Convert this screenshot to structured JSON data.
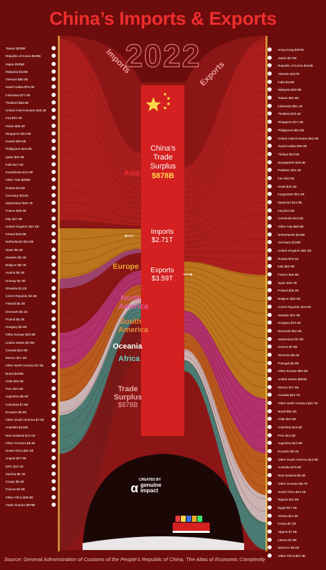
{
  "header": {
    "title": "China’s Imports & Exports",
    "year": "2022"
  },
  "side_labels": {
    "imports": "Imports",
    "exports": "Exports"
  },
  "center": {
    "surplus_title": "China’s Trade Surplus",
    "surplus_value": "$878B",
    "imports_label": "Imports",
    "imports_value": "$2.71T",
    "exports_label": "Exports",
    "exports_value": "$3.59T",
    "trade_surplus_label": "Trade Surplus",
    "trade_surplus_value": "$878B"
  },
  "regions": {
    "asia": "Asia",
    "europe": "Europe",
    "north_america": "North America",
    "south_america": "South America",
    "oceania": "Oceania",
    "africa": "Africa"
  },
  "colors": {
    "background": "#6d0c0c",
    "asia": "#b01e1e",
    "europe": "#c4861d",
    "north_america": "#b8367a",
    "south_america": "#c2671f",
    "oceania": "#d6cfcf",
    "africa": "#3f8c82",
    "title": "#ee2e2e"
  },
  "imports": [
    {
      "label": "Taiwan $238B"
    },
    {
      "label": "Republic of Korea $199B"
    },
    {
      "label": "Japan $185B"
    },
    {
      "label": "Malaysia $110B"
    },
    {
      "label": "Vietnam $88.0B"
    },
    {
      "label": "Saudi Arabia $78.0B"
    },
    {
      "label": "Indonesia $77.6B"
    },
    {
      "label": "Thailand $58.5B"
    },
    {
      "label": "United Arab Emirates $45.4B"
    },
    {
      "label": "Iraq $41.4B"
    },
    {
      "label": "Oman $36.2B"
    },
    {
      "label": "Singapore $34.0B"
    },
    {
      "label": "Kuwait $28.5B"
    },
    {
      "label": "Philippines $23.0B"
    },
    {
      "label": "Qatar $22.6B"
    },
    {
      "label": "India $17.5B"
    },
    {
      "label": "Kazakhstan $14.8B"
    },
    {
      "label": "Other Asia $285B"
    },
    {
      "label": "Russia $114B"
    },
    {
      "label": "Germany $111B"
    },
    {
      "label": "Switzerland $49.7B"
    },
    {
      "label": "France $29.4B"
    },
    {
      "label": "Italy $27.0B"
    },
    {
      "label": "United Kingdom $21.6B"
    },
    {
      "label": "Ireland $18.9B"
    },
    {
      "label": "Netherlands $12.5B"
    },
    {
      "label": "Spain $9.3B"
    },
    {
      "label": "Sweden $9.2B"
    },
    {
      "label": "Belgium $8.7B"
    },
    {
      "label": "Austria $6.3B"
    },
    {
      "label": "Norway $4.3B"
    },
    {
      "label": "Slovakia $4.2B"
    },
    {
      "label": "Czech Republic $3.4B"
    },
    {
      "label": "Finland $5.2B"
    },
    {
      "label": "Denmark $5.1B"
    },
    {
      "label": "Poland $5.1B"
    },
    {
      "label": "Hungary $5.0B"
    },
    {
      "label": "Other Europe $20.6B"
    },
    {
      "label": "United States $178B"
    },
    {
      "label": "Canada $42.9B"
    },
    {
      "label": "Mexico $17.4B"
    },
    {
      "label": "Other North America $7.6B"
    },
    {
      "label": "Brazil $109B"
    },
    {
      "label": "Chile $44.3B"
    },
    {
      "label": "Peru $24.0B"
    },
    {
      "label": "Argentina $8.0B"
    },
    {
      "label": "Colombia $7.8B"
    },
    {
      "label": "Ecuador $6.9B"
    },
    {
      "label": "Other South America $7.6B"
    },
    {
      "label": "Australia $142B"
    },
    {
      "label": "New Zealand $13.1B"
    },
    {
      "label": "Other Oceania $6.3B"
    },
    {
      "label": "South Africa $32.4B"
    },
    {
      "label": "Angola $27.0B"
    },
    {
      "label": "DRC $15.1B"
    },
    {
      "label": "Zambia $5.7B"
    },
    {
      "label": "Congo $5.6B"
    },
    {
      "label": "Guinea $4.5B"
    },
    {
      "label": "Other Africa $29.6B"
    },
    {
      "label": "Trade Surplus $878B"
    }
  ],
  "exports": [
    {
      "label": "Hong Kong $297B"
    },
    {
      "label": "Japan $173B"
    },
    {
      "label": "Republic of Korea $163B"
    },
    {
      "label": "Vietnam $147B"
    },
    {
      "label": "India $118B"
    },
    {
      "label": "Malaysia $93.5B"
    },
    {
      "label": "Taiwan $81.6B"
    },
    {
      "label": "Indonesia $81.1B"
    },
    {
      "label": "Thailand $78.4B"
    },
    {
      "label": "Singapore $71.5B"
    },
    {
      "label": "Philippines $64.6B"
    },
    {
      "label": "United Arab Emirates $53.9B"
    },
    {
      "label": "Saudi Arabia $38.0B"
    },
    {
      "label": "Türkiye $34.0B"
    },
    {
      "label": "Bangladesh $26.0B"
    },
    {
      "label": "Pakistan $23.1B"
    },
    {
      "label": "Iran $16.5B"
    },
    {
      "label": "Israel $16.2B"
    },
    {
      "label": "Kyrgyzstan $15.4B"
    },
    {
      "label": "Myanmar $14.9B"
    },
    {
      "label": "Iraq $14.0B"
    },
    {
      "label": "Cambodia $13.6B"
    },
    {
      "label": "Other Asia $65.8B"
    },
    {
      "label": "Netherlands $118B"
    },
    {
      "label": "Germany $116B"
    },
    {
      "label": "United Kingdom $81.5B"
    },
    {
      "label": "Russia $76.1B"
    },
    {
      "label": "Italy $50.9B"
    },
    {
      "label": "France $45.9B"
    },
    {
      "label": "Spain $43.7B"
    },
    {
      "label": "Poland $38.2B"
    },
    {
      "label": "Belgium $26.4B"
    },
    {
      "label": "Czech Republic $16.5B"
    },
    {
      "label": "Sweden $11.4B"
    },
    {
      "label": "Hungary $10.4B"
    },
    {
      "label": "Denmark $10.2B"
    },
    {
      "label": "Switzerland $7.6B"
    },
    {
      "label": "Greece $7.6B"
    },
    {
      "label": "Slovenia $6.1B"
    },
    {
      "label": "Portugal $6.0B"
    },
    {
      "label": "Other Europe $50.0B"
    },
    {
      "label": "United States $582B"
    },
    {
      "label": "Mexico $77.5B"
    },
    {
      "label": "Canada $53.7B"
    },
    {
      "label": "Other North America $32.7B"
    },
    {
      "label": "Brazil $62.0B"
    },
    {
      "label": "Chile $22.5B"
    },
    {
      "label": "Colombia $15.8B"
    },
    {
      "label": "Peru $13.3B"
    },
    {
      "label": "Argentina $12.6B"
    },
    {
      "label": "Ecuador $5.1B"
    },
    {
      "label": "Other South America $13.0B"
    },
    {
      "label": "Australia $79.8B"
    },
    {
      "label": "New Zealand $6.3B"
    },
    {
      "label": "Other Oceania $5.7B"
    },
    {
      "label": "South Africa $24.4B"
    },
    {
      "label": "Nigeria $22.5B"
    },
    {
      "label": "Egypt $17.2B"
    },
    {
      "label": "Ghana $11.3B"
    },
    {
      "label": "Kenya $7.2B"
    },
    {
      "label": "Algeria $7.0B"
    },
    {
      "label": "Liberia $7.0B"
    },
    {
      "label": "Morocco $6.6B"
    },
    {
      "label": "Other Africa $57.3B"
    }
  ],
  "logo": {
    "created_by": "CREATED BY",
    "brand_line1": "genuine",
    "brand_line2": "impact"
  },
  "footer": {
    "source": "Source: General Administration of Customs of the People’s Republic of China, The Atlas of Economic Complexity"
  }
}
